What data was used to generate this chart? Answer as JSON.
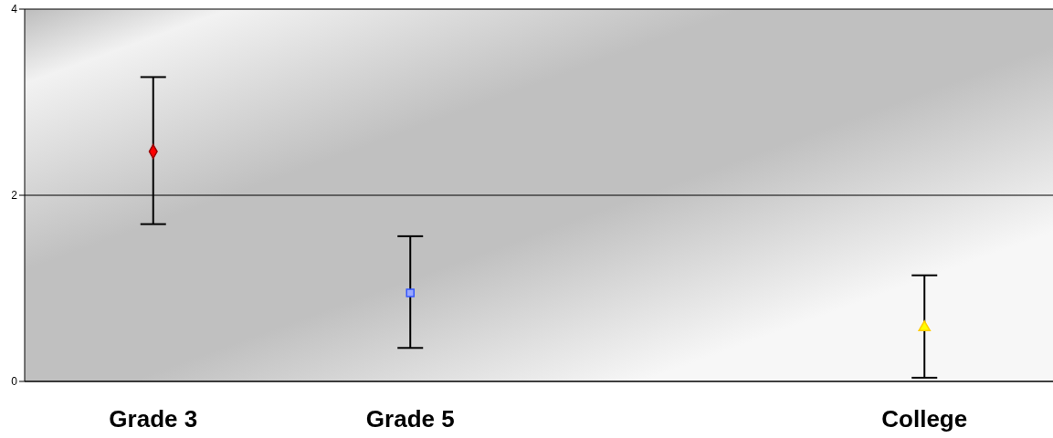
{
  "chart_data": {
    "type": "scatter",
    "categories": [
      "Grade 3",
      "Grade 5",
      null,
      "College"
    ],
    "series": [
      {
        "color": "#ff0000",
        "marker": "diamond",
        "values": [
          2.47,
          null,
          null,
          null
        ],
        "errors": [
          [
            1.69,
            3.27
          ],
          null,
          null,
          null
        ]
      },
      {
        "color": "#99a8ff",
        "marker": "square",
        "values": [
          null,
          0.95,
          null,
          null
        ],
        "errors": [
          null,
          [
            0.36,
            1.56
          ],
          null,
          null
        ]
      },
      {
        "color": "#ffff00",
        "marker": "triangle",
        "values": [
          null,
          null,
          null,
          0.58
        ],
        "errors": [
          null,
          null,
          null,
          [
            0.04,
            1.14
          ]
        ]
      }
    ],
    "ylim": [
      0,
      4
    ],
    "yticks": [
      0,
      2,
      4
    ],
    "grid": "y",
    "legend": false
  }
}
